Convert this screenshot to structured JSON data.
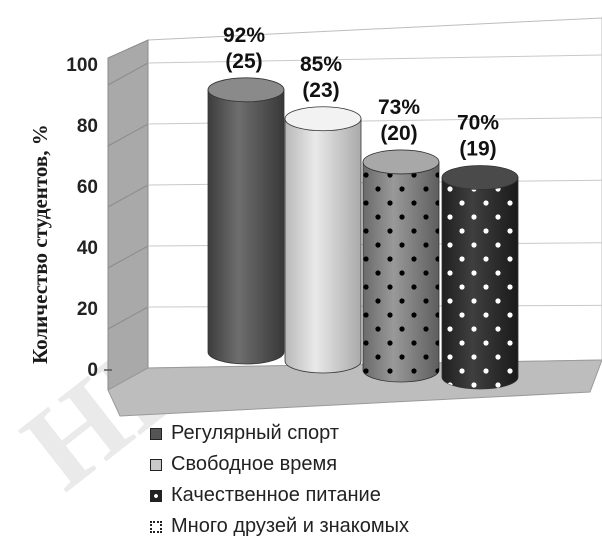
{
  "chart_data": {
    "type": "bar",
    "style": "3d-cylinder",
    "categories": [
      "Регулярный спорт",
      "Свободное время",
      "Качественное питание",
      "Много друзей и знакомых"
    ],
    "values": [
      92,
      85,
      73,
      70
    ],
    "counts": [
      25,
      23,
      20,
      19
    ],
    "value_labels": [
      "92%",
      "85%",
      "73%",
      "70%"
    ],
    "count_labels": [
      "(25)",
      "(23)",
      "(20)",
      "(19)"
    ],
    "ylabel": "Количество студентов, %",
    "ylim": [
      0,
      100
    ],
    "yticks": [
      "0",
      "20",
      "40",
      "60",
      "80",
      "100"
    ],
    "grid": true,
    "legend_position": "bottom",
    "colors": [
      "#555555",
      "#cccccc",
      "#7a7a7a",
      "#2c2c2c"
    ],
    "patterns": [
      "solid",
      "solid",
      "dark-dots",
      "white-dots"
    ]
  },
  "legend": {
    "items": [
      {
        "label": "Регулярный спорт"
      },
      {
        "label": "Свободное время"
      },
      {
        "label": "Качественное питание"
      },
      {
        "label": "Много друзей и знакомых"
      }
    ]
  }
}
